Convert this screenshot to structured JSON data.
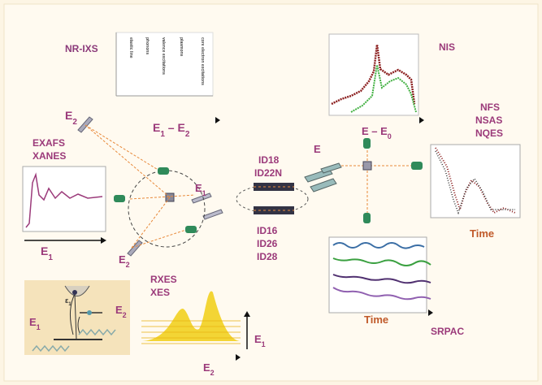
{
  "nr_ixs": {
    "title": "NR-IXS",
    "features": [
      "elastic line",
      "phonons",
      "valence excitations",
      "plasmons",
      "core electron excitations"
    ]
  },
  "labels": [
    {
      "parts": [
        "E",
        "2"
      ]
    },
    {
      "parts": [
        "E",
        "1",
        " – E",
        "2"
      ]
    },
    {
      "parts": [
        "EXAFS"
      ]
    },
    {
      "parts": [
        "XANES"
      ]
    },
    {
      "parts": [
        "E",
        "1"
      ]
    },
    {
      "parts": [
        "E",
        "1"
      ]
    },
    {
      "parts": [
        "E",
        "2"
      ]
    },
    {
      "parts": [
        "ID18"
      ]
    },
    {
      "parts": [
        "ID22N"
      ]
    },
    {
      "parts": [
        "ID16"
      ]
    },
    {
      "parts": [
        "ID26"
      ]
    },
    {
      "parts": [
        "ID28"
      ]
    },
    {
      "parts": [
        "E"
      ]
    },
    {
      "parts": [
        "E – E",
        "0"
      ]
    },
    {
      "parts": [
        "NIS"
      ]
    },
    {
      "parts": [
        "NFS"
      ]
    },
    {
      "parts": [
        "NSAS"
      ]
    },
    {
      "parts": [
        "NQES"
      ]
    },
    {
      "parts": [
        "Time"
      ]
    },
    {
      "parts": [
        "Time"
      ]
    },
    {
      "parts": [
        "SRPAC"
      ]
    },
    {
      "parts": [
        "RXES"
      ]
    },
    {
      "parts": [
        "XES"
      ]
    },
    {
      "parts": [
        "E",
        "1"
      ]
    },
    {
      "parts": [
        "E",
        "2"
      ]
    },
    {
      "parts": [
        "ε",
        "1"
      ]
    },
    {
      "parts": [
        "E",
        "1"
      ]
    },
    {
      "parts": [
        "E",
        "2"
      ]
    }
  ]
}
